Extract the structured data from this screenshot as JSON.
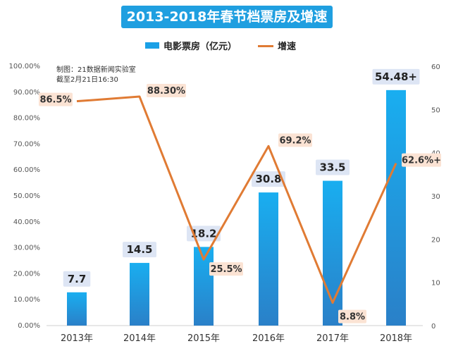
{
  "title": "2013-2018年春节档票房及增速",
  "legend": {
    "bar_label": "电影票房（亿元）",
    "line_label": "增速"
  },
  "source_note": [
    "制图：21数据新闻实验室",
    "截至2月21日16:30"
  ],
  "colors": {
    "bar": "#1aa0e6",
    "line": "#e07b34",
    "title_bg": "#1f9fe0",
    "label_box": "#dde5f4",
    "rate_box": "#fbe3d4"
  },
  "chart_data": {
    "type": "bar",
    "categories": [
      "2013年",
      "2014年",
      "2015年",
      "2016年",
      "2017年",
      "2018年"
    ],
    "series": [
      {
        "name": "电影票房（亿元）",
        "type": "bar",
        "axis": "right",
        "values": [
          7.7,
          14.5,
          18.2,
          30.8,
          33.5,
          54.48
        ],
        "labels": [
          "7.7",
          "14.5",
          "18.2",
          "30.8",
          "33.5",
          "54.48+"
        ]
      },
      {
        "name": "增速",
        "type": "line",
        "axis": "left",
        "values": [
          86.5,
          88.3,
          25.5,
          69.2,
          8.8,
          62.6
        ],
        "labels": [
          "86.5%",
          "88.30%",
          "25.5%",
          "69.2%",
          "8.8%",
          "62.6%+"
        ]
      }
    ],
    "left_axis": {
      "range": [
        0,
        100
      ],
      "ticks": [
        "0.00%",
        "10.00%",
        "20.00%",
        "30.00%",
        "40.00%",
        "50.00%",
        "60.00%",
        "70.00%",
        "80.00%",
        "90.00%",
        "100.00%"
      ]
    },
    "right_axis": {
      "range": [
        0,
        60
      ],
      "ticks": [
        "0",
        "10",
        "20",
        "30",
        "40",
        "50",
        "60"
      ]
    },
    "grid": false
  }
}
